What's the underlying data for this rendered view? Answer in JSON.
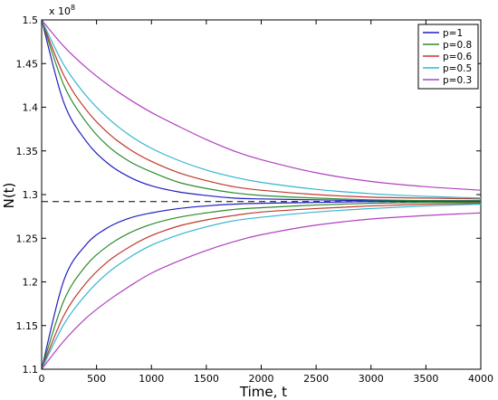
{
  "chart_data": {
    "type": "line",
    "title": "",
    "xlabel": "Time, t",
    "ylabel": "N(t)",
    "y_multiplier_label": "x 10",
    "y_multiplier_exponent": "8",
    "xlim": [
      0,
      4000
    ],
    "ylim": [
      1.1,
      1.5
    ],
    "xticks": [
      0,
      500,
      1000,
      1500,
      2000,
      2500,
      3000,
      3500,
      4000
    ],
    "yticks": [
      1.1,
      1.15,
      1.2,
      1.25,
      1.3,
      1.35,
      1.4,
      1.45,
      1.5
    ],
    "grid": false,
    "legend_position": "top-right",
    "equilibrium": 1.292,
    "x": [
      0,
      200,
      400,
      600,
      800,
      1000,
      1250,
      1500,
      1750,
      2000,
      2500,
      3000,
      3500,
      4000
    ],
    "series": [
      {
        "name": "p=1",
        "color": "#1f1fbf",
        "upper": [
          1.5,
          1.406,
          1.362,
          1.336,
          1.32,
          1.31,
          1.303,
          1.299,
          1.296,
          1.295,
          1.294,
          1.293,
          1.293,
          1.293
        ],
        "lower": [
          1.1,
          1.201,
          1.242,
          1.262,
          1.273,
          1.279,
          1.284,
          1.287,
          1.289,
          1.29,
          1.291,
          1.292,
          1.292,
          1.292
        ]
      },
      {
        "name": "p=0.8",
        "color": "#2e8b2e",
        "upper": [
          1.5,
          1.426,
          1.384,
          1.356,
          1.338,
          1.326,
          1.314,
          1.307,
          1.302,
          1.299,
          1.296,
          1.294,
          1.293,
          1.293
        ],
        "lower": [
          1.1,
          1.178,
          1.218,
          1.241,
          1.256,
          1.266,
          1.274,
          1.279,
          1.283,
          1.285,
          1.288,
          1.29,
          1.291,
          1.291
        ]
      },
      {
        "name": "p=0.6",
        "color": "#c0392b",
        "upper": [
          1.5,
          1.437,
          1.398,
          1.371,
          1.352,
          1.338,
          1.325,
          1.316,
          1.309,
          1.305,
          1.3,
          1.297,
          1.296,
          1.295
        ],
        "lower": [
          1.1,
          1.161,
          1.198,
          1.223,
          1.24,
          1.253,
          1.264,
          1.271,
          1.276,
          1.28,
          1.284,
          1.287,
          1.289,
          1.29
        ]
      },
      {
        "name": "p=0.5",
        "color": "#35b5d1",
        "upper": [
          1.5,
          1.449,
          1.414,
          1.388,
          1.368,
          1.353,
          1.339,
          1.328,
          1.32,
          1.314,
          1.306,
          1.301,
          1.298,
          1.296
        ],
        "lower": [
          1.1,
          1.151,
          1.185,
          1.21,
          1.228,
          1.242,
          1.254,
          1.263,
          1.27,
          1.274,
          1.28,
          1.284,
          1.287,
          1.289
        ]
      },
      {
        "name": "p=0.3",
        "color": "#b140c0",
        "upper": [
          1.5,
          1.47,
          1.446,
          1.426,
          1.409,
          1.394,
          1.378,
          1.363,
          1.35,
          1.34,
          1.325,
          1.315,
          1.309,
          1.305
        ],
        "lower": [
          1.1,
          1.132,
          1.158,
          1.178,
          1.195,
          1.21,
          1.224,
          1.236,
          1.246,
          1.254,
          1.265,
          1.272,
          1.276,
          1.279
        ]
      }
    ]
  }
}
